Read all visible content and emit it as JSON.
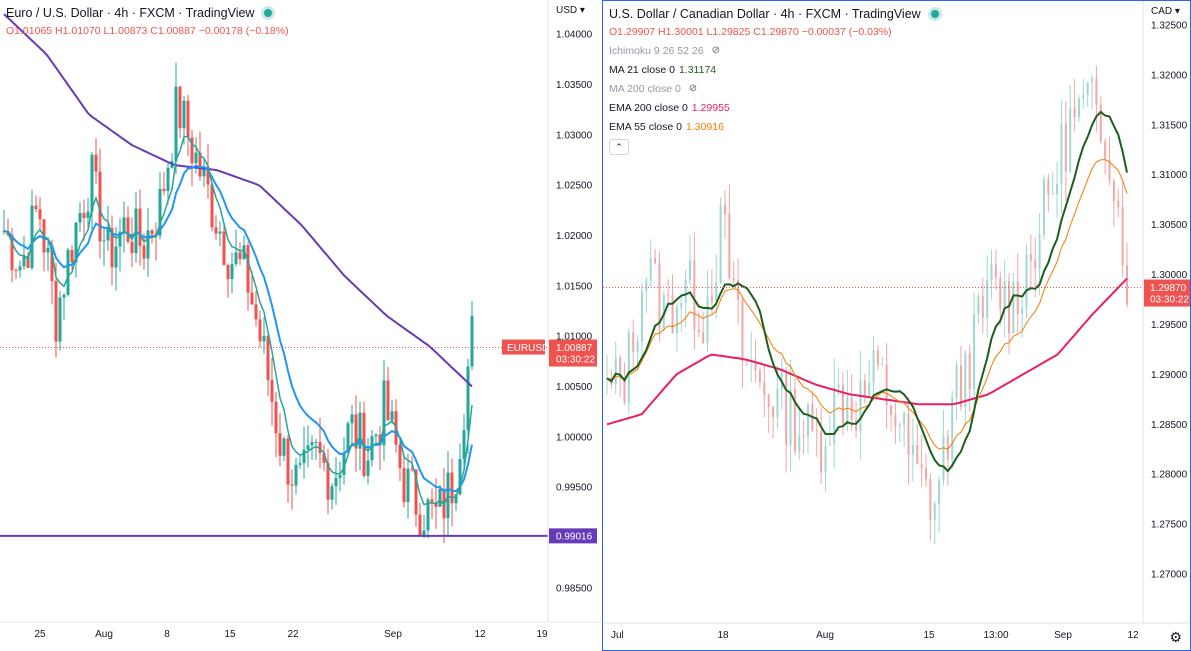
{
  "left_chart": {
    "title": "Euro / U.S. Dollar · 4h · FXCM · TradingView",
    "ohlc": {
      "o": "O1.01065",
      "h": "H1.01070",
      "l": "L1.00873",
      "c": "C1.00887",
      "chg": "−0.00178 (−0.18%)"
    },
    "currency": "USD",
    "price_ticks": [
      "1.04000",
      "1.03500",
      "1.03000",
      "1.02500",
      "1.02000",
      "1.01500",
      "1.01000",
      "1.00500",
      "1.00000",
      "0.99500",
      "0.99000",
      "0.98500"
    ],
    "time_ticks": [
      "25",
      "Aug",
      "8",
      "15",
      "22",
      "Sep",
      "12",
      "19"
    ],
    "symbol_tag": "EURUSD",
    "last_price": "1.00887",
    "countdown": "03:30:22",
    "hline_price": "0.99016",
    "colors": {
      "up": "#26a69a",
      "down": "#ef5350",
      "ma_fast": "#26a69a",
      "ma_mid": "#2196f3",
      "ma_slow": "#673ab7",
      "hline": "#673ab7"
    }
  },
  "right_chart": {
    "title": "U.S. Dollar / Canadian Dollar · 4h · FXCM · TradingView",
    "ohlc": {
      "o": "O1.29907",
      "h": "H1.30001",
      "l": "L1.29825",
      "c": "C1.29870",
      "chg": "−0.00037 (−0.03%)"
    },
    "currency": "CAD",
    "indicators": [
      {
        "label": "Ichimoku 9 26 52 26",
        "value": "",
        "hidden": true
      },
      {
        "label": "MA 21 close 0",
        "value": "1.31174",
        "color": "#1b5e20",
        "hidden": false
      },
      {
        "label": "MA 200 close 0",
        "value": "",
        "hidden": true
      },
      {
        "label": "EMA 200 close 0",
        "value": "1.29955",
        "color": "#e91e63",
        "hidden": false
      },
      {
        "label": "EMA 55 close 0",
        "value": "1.30916",
        "color": "#f57c00",
        "hidden": false
      }
    ],
    "price_ticks": [
      "1.32500",
      "1.32000",
      "1.31500",
      "1.31000",
      "1.30500",
      "1.30000",
      "1.29500",
      "1.29000",
      "1.28500",
      "1.28000",
      "1.27500",
      "1.27000"
    ],
    "time_ticks": [
      "Jul",
      "18",
      "Aug",
      "15",
      "13:00",
      "Sep",
      "12"
    ],
    "last_price": "1.29870",
    "countdown": "03:30:22",
    "colors": {
      "up": "#26a69a",
      "down": "#ef5350",
      "ma21": "#1b5e20",
      "ema55": "#f57c00",
      "ema200": "#e91e63"
    }
  }
}
